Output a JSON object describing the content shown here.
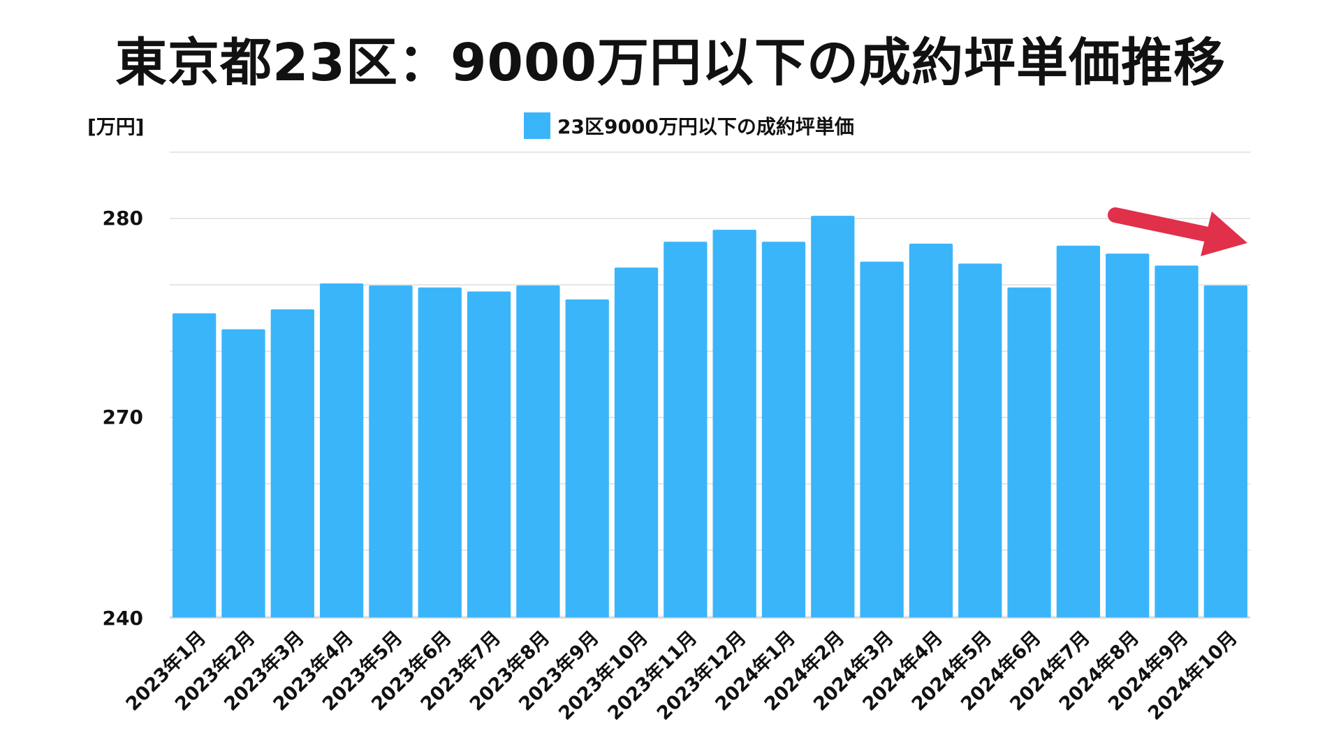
{
  "title": "東京都23区：9000万円以下の成約坪単価推移",
  "unit_label": "[万円]",
  "bar_color": "#3bb5fa",
  "arrow_color": "#e0304a",
  "chart_data": {
    "type": "bar",
    "title": "東京都23区：9000万円以下の成約坪単価推移",
    "ylabel": "[万円]",
    "legend": "top-center",
    "grid": true,
    "y_ticks": [
      {
        "value": 240,
        "label": "240"
      },
      {
        "value": 270,
        "label": "270"
      },
      {
        "value": 280,
        "label": "280"
      }
    ],
    "categories": [
      "2023年1月",
      "2023年2月",
      "2023年3月",
      "2023年4月",
      "2023年5月",
      "2023年6月",
      "2023年7月",
      "2023年8月",
      "2023年9月",
      "2023年10月",
      "2023年11月",
      "2023年12月",
      "2024年1月",
      "2024年2月",
      "2024年3月",
      "2024年4月",
      "2024年5月",
      "2024年6月",
      "2024年7月",
      "2024年8月",
      "2024年9月",
      "2024年10月"
    ],
    "series": [
      {
        "name": "23区9000万円以下の成約坪単価",
        "values": [
          275.2,
          274.4,
          275.4,
          276.7,
          276.6,
          276.5,
          276.3,
          276.6,
          275.9,
          277.5,
          278.8,
          279.4,
          278.8,
          280.1,
          277.8,
          278.7,
          277.7,
          276.5,
          278.6,
          278.2,
          277.6,
          276.6
        ]
      }
    ]
  }
}
